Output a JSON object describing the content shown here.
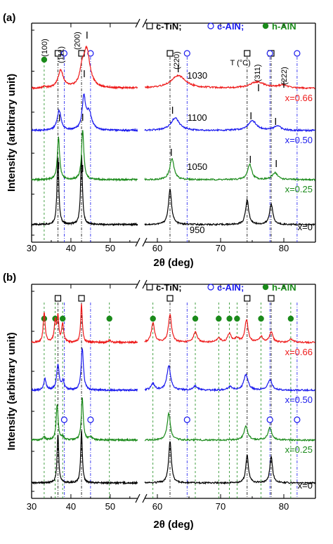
{
  "chart_data": [
    {
      "panel": "(a)",
      "type": "line",
      "xlabel": "2θ (deg)",
      "ylabel": "Intensity (arbitrary unit)",
      "xlim": [
        30,
        85
      ],
      "x_break": [
        57,
        58
      ],
      "xticks": [
        "30",
        "40",
        "50",
        "60",
        "70",
        "80"
      ],
      "legend": [
        {
          "marker": "square",
          "label": "c-TiN;",
          "color": "#000000"
        },
        {
          "marker": "circle",
          "label": "c-AlN;",
          "color": "#1a1aee"
        },
        {
          "marker": "dot",
          "label": "h-AlN",
          "color": "#1a8a1a"
        }
      ],
      "temp_header": "T (°C)",
      "peak_labels": [
        "(100)",
        "(111)",
        "(200)",
        "(220)",
        "(311)",
        "(222)"
      ],
      "series": [
        {
          "composition": "x=0",
          "temperature": "950",
          "color": "#000000"
        },
        {
          "composition": "x=0.25",
          "temperature": "1050",
          "color": "#1a8a1a"
        },
        {
          "composition": "x=0.50",
          "temperature": "1100",
          "color": "#1a1aee"
        },
        {
          "composition": "x=0.66",
          "temperature": "1030",
          "color": "#ee1a1a"
        }
      ],
      "ref_lines": {
        "c-TiN": [
          36.7,
          42.7,
          62.0,
          74.2,
          78.0
        ],
        "c-AlN": [
          38.3,
          45.0,
          64.7,
          77.8,
          82.1
        ],
        "h-AlN": [
          33.2
        ]
      }
    },
    {
      "panel": "(b)",
      "type": "line",
      "xlabel": "2θ (deg)",
      "ylabel": "Intensity (arbitrary unit)",
      "xlim": [
        30,
        85
      ],
      "x_break": [
        57,
        58
      ],
      "xticks": [
        "30",
        "40",
        "50",
        "60",
        "70",
        "80"
      ],
      "legend": [
        {
          "marker": "square",
          "label": "c-TiN;",
          "color": "#000000"
        },
        {
          "marker": "circle",
          "label": "c-AlN;",
          "color": "#1a1aee"
        },
        {
          "marker": "dot",
          "label": "h-AlN",
          "color": "#1a8a1a"
        }
      ],
      "series": [
        {
          "composition": "x=0",
          "color": "#000000"
        },
        {
          "composition": "x=0.25",
          "color": "#1a8a1a"
        },
        {
          "composition": "x=0.50",
          "color": "#1a1aee"
        },
        {
          "composition": "x=0.66",
          "color": "#ee1a1a"
        }
      ],
      "ref_lines": {
        "c-TiN": [
          36.7,
          42.7,
          62.0,
          74.2,
          78.0
        ],
        "c-AlN": [
          38.3,
          45.0,
          64.7,
          77.8,
          82.1
        ],
        "h-AlN": [
          33.2,
          36.0,
          37.9,
          49.8,
          59.3,
          66.0,
          69.7,
          71.4,
          72.6,
          76.4,
          81.1
        ]
      }
    }
  ]
}
